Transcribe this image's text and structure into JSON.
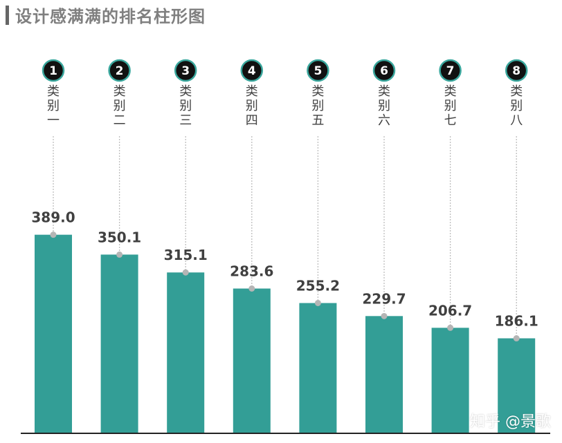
{
  "title": "设计感满满的排名柱形图",
  "watermark": "知乎 @景歌",
  "colors": {
    "bar": "#339e96",
    "badge_fill": "#111111",
    "badge_ring": "#3aa79d",
    "leader_line": "#bdbdbd",
    "dot": "#b5b5b5",
    "axis": "#222222"
  },
  "chart_data": {
    "type": "bar",
    "title": "设计感满满的排名柱形图",
    "ranks": [
      "1",
      "2",
      "3",
      "4",
      "5",
      "6",
      "7",
      "8"
    ],
    "categories": [
      "类别一",
      "类别二",
      "类别三",
      "类别四",
      "类别五",
      "类别六",
      "类别七",
      "类别八"
    ],
    "values": [
      389.0,
      350.1,
      315.1,
      283.6,
      255.2,
      229.7,
      206.7,
      186.1
    ],
    "value_labels": [
      "389.0",
      "350.1",
      "315.1",
      "283.6",
      "255.2",
      "229.7",
      "206.7",
      "186.1"
    ],
    "xlabel": "",
    "ylabel": "",
    "ylim": [
      0,
      410
    ],
    "grid": false,
    "legend": "none"
  }
}
